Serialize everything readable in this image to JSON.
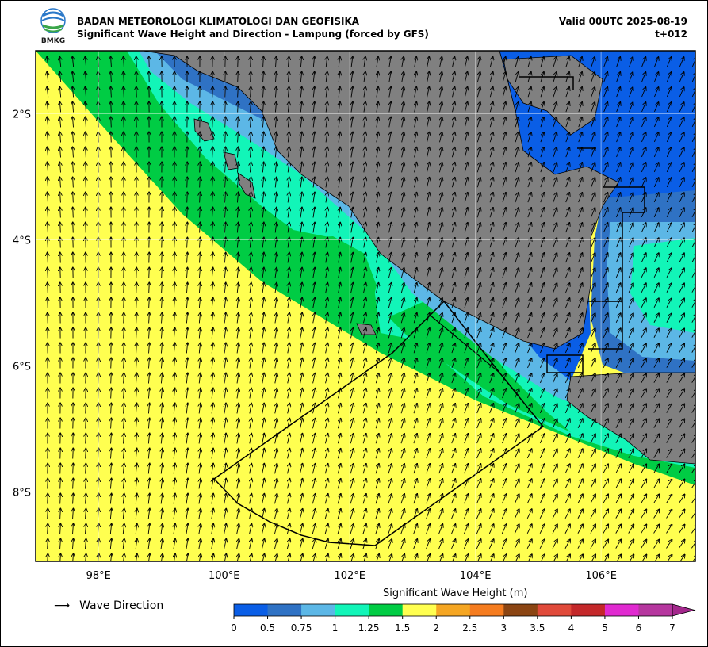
{
  "header": {
    "agency": "BADAN METEOROLOGI KLIMATOLOGI DAN GEOFISIKA",
    "subtitle": "Significant Wave Height and Direction - Lampung (forced by GFS)",
    "valid": "Valid 00UTC 2025-08-19",
    "lead": "t+012",
    "logo_text": "BMKG"
  },
  "map": {
    "lon_range": [
      97,
      107.5
    ],
    "lat_range": [
      -9.1,
      -1.0
    ],
    "x_ticks": [
      "98°E",
      "100°E",
      "102°E",
      "104°E",
      "106°E"
    ],
    "x_tick_values": [
      98,
      100,
      102,
      104,
      106
    ],
    "y_ticks": [
      "2°S",
      "4°S",
      "6°S",
      "8°S"
    ],
    "y_tick_values": [
      -2,
      -4,
      -6,
      -8
    ],
    "land_color": "#808080",
    "grid": true
  },
  "legend": {
    "arrow_glyph": "⟶",
    "label": "Wave Direction"
  },
  "colorbar": {
    "title": "Significant Wave Height (m)",
    "ticks": [
      "0",
      "0.5",
      "0.75",
      "1",
      "1.25",
      "1.5",
      "2",
      "2.5",
      "3",
      "3.5",
      "4",
      "5",
      "6",
      "7"
    ],
    "colors": [
      "#0a5ee6",
      "#2f72c4",
      "#5cb7e6",
      "#12f5b8",
      "#00cc44",
      "#ffff50",
      "#f5a623",
      "#f57c1f",
      "#8b4513",
      "#e04a3a",
      "#c4282a",
      "#e02ad0",
      "#b5369e"
    ],
    "extend_color": "#a3288c"
  }
}
